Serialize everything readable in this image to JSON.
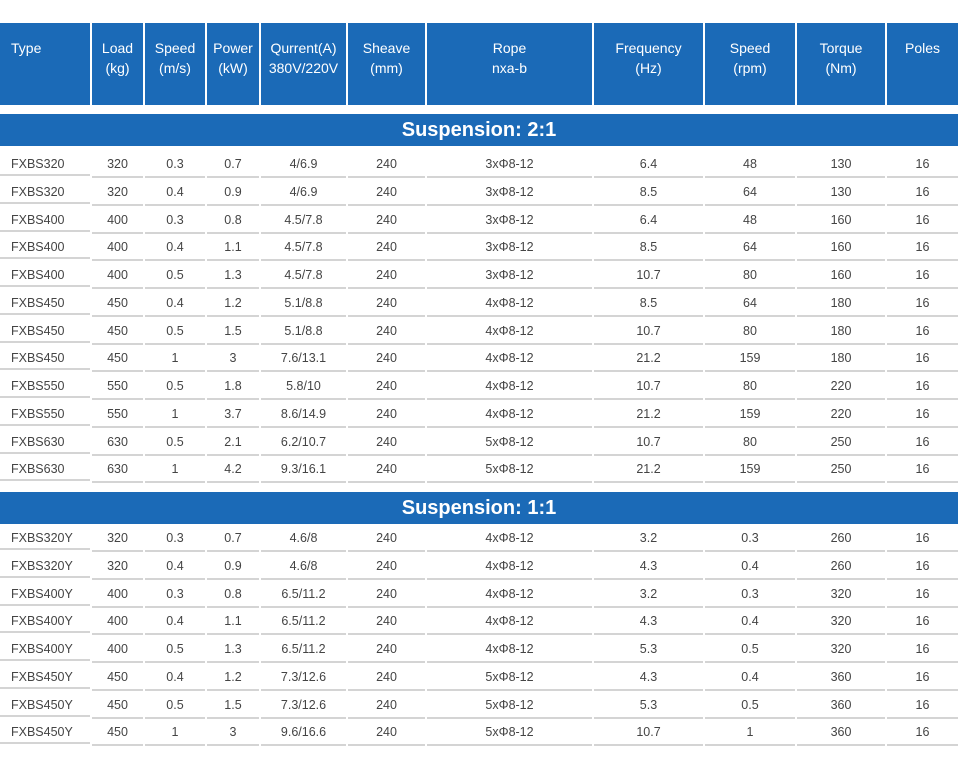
{
  "headers": [
    "Type",
    "Load\n(kg)",
    "Speed\n(m/s)",
    "Power\n(kW)",
    "Qurrent(A)\n380V/220V",
    "Sheave\n(mm)",
    "Rope\nnxa-b",
    "Frequency\n(Hz)",
    "Speed\n(rpm)",
    "Torque\n(Nm)",
    "Poles"
  ],
  "sections": [
    {
      "title": "Suspension: 2:1",
      "rows": [
        [
          "FXBS320",
          "320",
          "0.3",
          "0.7",
          "4/6.9",
          "240",
          "3xΦ8-12",
          "6.4",
          "48",
          "130",
          "16"
        ],
        [
          "FXBS320",
          "320",
          "0.4",
          "0.9",
          "4/6.9",
          "240",
          "3xΦ8-12",
          "8.5",
          "64",
          "130",
          "16"
        ],
        [
          "FXBS400",
          "400",
          "0.3",
          "0.8",
          "4.5/7.8",
          "240",
          "3xΦ8-12",
          "6.4",
          "48",
          "160",
          "16"
        ],
        [
          "FXBS400",
          "400",
          "0.4",
          "1.1",
          "4.5/7.8",
          "240",
          "3xΦ8-12",
          "8.5",
          "64",
          "160",
          "16"
        ],
        [
          "FXBS400",
          "400",
          "0.5",
          "1.3",
          "4.5/7.8",
          "240",
          "3xΦ8-12",
          "10.7",
          "80",
          "160",
          "16"
        ],
        [
          "FXBS450",
          "450",
          "0.4",
          "1.2",
          "5.1/8.8",
          "240",
          "4xΦ8-12",
          "8.5",
          "64",
          "180",
          "16"
        ],
        [
          "FXBS450",
          "450",
          "0.5",
          "1.5",
          "5.1/8.8",
          "240",
          "4xΦ8-12",
          "10.7",
          "80",
          "180",
          "16"
        ],
        [
          "FXBS450",
          "450",
          "1",
          "3",
          "7.6/13.1",
          "240",
          "4xΦ8-12",
          "21.2",
          "159",
          "180",
          "16"
        ],
        [
          "FXBS550",
          "550",
          "0.5",
          "1.8",
          "5.8/10",
          "240",
          "4xΦ8-12",
          "10.7",
          "80",
          "220",
          "16"
        ],
        [
          "FXBS550",
          "550",
          "1",
          "3.7",
          "8.6/14.9",
          "240",
          "4xΦ8-12",
          "21.2",
          "159",
          "220",
          "16"
        ],
        [
          "FXBS630",
          "630",
          "0.5",
          "2.1",
          "6.2/10.7",
          "240",
          "5xΦ8-12",
          "10.7",
          "80",
          "250",
          "16"
        ],
        [
          "FXBS630",
          "630",
          "1",
          "4.2",
          "9.3/16.1",
          "240",
          "5xΦ8-12",
          "21.2",
          "159",
          "250",
          "16"
        ]
      ]
    },
    {
      "title": "Suspension: 1:1",
      "rows": [
        [
          "FXBS320Y",
          "320",
          "0.3",
          "0.7",
          "4.6/8",
          "240",
          "4xΦ8-12",
          "3.2",
          "0.3",
          "260",
          "16"
        ],
        [
          "FXBS320Y",
          "320",
          "0.4",
          "0.9",
          "4.6/8",
          "240",
          "4xΦ8-12",
          "4.3",
          "0.4",
          "260",
          "16"
        ],
        [
          "FXBS400Y",
          "400",
          "0.3",
          "0.8",
          "6.5/11.2",
          "240",
          "4xΦ8-12",
          "3.2",
          "0.3",
          "320",
          "16"
        ],
        [
          "FXBS400Y",
          "400",
          "0.4",
          "1.1",
          "6.5/11.2",
          "240",
          "4xΦ8-12",
          "4.3",
          "0.4",
          "320",
          "16"
        ],
        [
          "FXBS400Y",
          "400",
          "0.5",
          "1.3",
          "6.5/11.2",
          "240",
          "4xΦ8-12",
          "5.3",
          "0.5",
          "320",
          "16"
        ],
        [
          "FXBS450Y",
          "450",
          "0.4",
          "1.2",
          "7.3/12.6",
          "240",
          "5xΦ8-12",
          "4.3",
          "0.4",
          "360",
          "16"
        ],
        [
          "FXBS450Y",
          "450",
          "0.5",
          "1.5",
          "7.3/12.6",
          "240",
          "5xΦ8-12",
          "5.3",
          "0.5",
          "360",
          "16"
        ],
        [
          "FXBS450Y",
          "450",
          "1",
          "3",
          "9.6/16.6",
          "240",
          "5xΦ8-12",
          "10.7",
          "1",
          "360",
          "16"
        ]
      ]
    }
  ],
  "colors": {
    "header_bg": "#1b6ab7",
    "text": "#444444",
    "row_border": "#d4d4d4"
  }
}
